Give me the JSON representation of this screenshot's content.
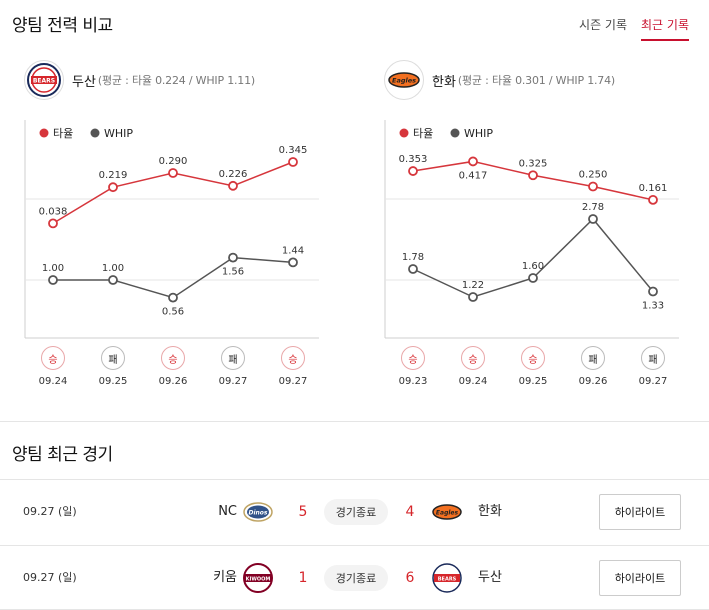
{
  "header": {
    "title": "양팀 전력 비교",
    "tabs": [
      {
        "label": "시즌 기록",
        "active": false
      },
      {
        "label": "최근 기록",
        "active": true
      }
    ]
  },
  "legend": {
    "avg_label": "타율",
    "whip_label": "WHIP"
  },
  "colors": {
    "avg": "#d6363c",
    "whip": "#555555",
    "accent": "#c8102e"
  },
  "left_team": {
    "name": "두산",
    "logo_text": "BEARS",
    "stat_text": "(평균 : 타율 0.224 / WHIP 1.11)"
  },
  "right_team": {
    "name": "한화",
    "logo_text": "Eagles",
    "stat_text": "(평균 : 타율 0.301 / WHIP 1.74)"
  },
  "chart_data": [
    {
      "type": "line",
      "team": "두산",
      "categories": [
        "09.24",
        "09.25",
        "09.26",
        "09.27",
        "09.27"
      ],
      "series": [
        {
          "name": "타율",
          "values": [
            0.038,
            0.219,
            0.29,
            0.226,
            0.345
          ],
          "labels": [
            "0.038",
            "0.219",
            "0.290",
            "0.226",
            "0.345"
          ]
        },
        {
          "name": "WHIP",
          "values": [
            1.0,
            1.0,
            0.56,
            1.56,
            1.44
          ],
          "labels": [
            "1.00",
            "1.00",
            "0.56",
            "1.56",
            "1.44"
          ]
        }
      ],
      "results": [
        "승",
        "패",
        "승",
        "패",
        "승"
      ]
    },
    {
      "type": "line",
      "team": "한화",
      "categories": [
        "09.23",
        "09.24",
        "09.25",
        "09.26",
        "09.27"
      ],
      "series": [
        {
          "name": "타율",
          "values": [
            0.353,
            0.417,
            0.325,
            0.25,
            0.161
          ],
          "labels": [
            "0.353",
            "0.417",
            "0.325",
            "0.250",
            "0.161"
          ]
        },
        {
          "name": "WHIP",
          "values": [
            1.78,
            1.22,
            1.6,
            2.78,
            1.33
          ],
          "labels": [
            "1.78",
            "1.22",
            "1.60",
            "2.78",
            "1.33"
          ]
        }
      ],
      "results": [
        "승",
        "승",
        "승",
        "패",
        "패"
      ]
    }
  ],
  "recent": {
    "title": "양팀 최근 경기",
    "games": [
      {
        "date": "09.27 (일)",
        "home": "NC",
        "home_logo": "Dinos",
        "home_score": "5",
        "status": "경기종료",
        "away_score": "4",
        "away_logo": "Eagles",
        "away": "한화",
        "button": "하이라이트"
      },
      {
        "date": "09.27 (일)",
        "home": "키움",
        "home_logo": "KIWOOM",
        "home_score": "1",
        "status": "경기종료",
        "away_score": "6",
        "away_logo": "BEARS",
        "away": "두산",
        "button": "하이라이트"
      }
    ]
  }
}
